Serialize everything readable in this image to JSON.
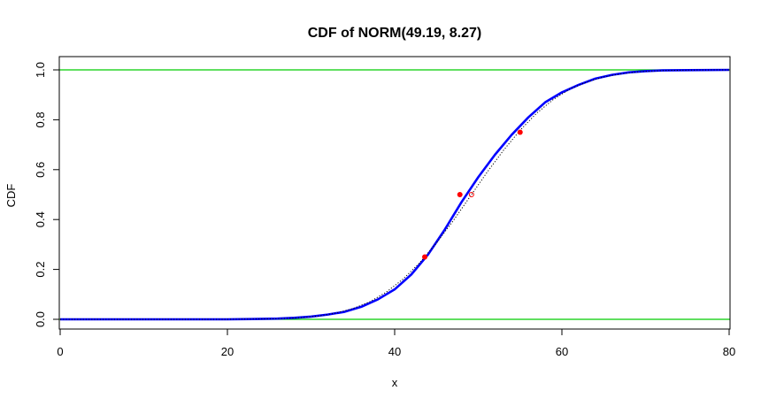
{
  "chart_data": {
    "type": "line",
    "title": "CDF of NORM(49.19, 8.27)",
    "xlabel": "x",
    "ylabel": "CDF",
    "xlim": [
      0,
      80
    ],
    "ylim": [
      0,
      1
    ],
    "x_ticks": [
      "0",
      "20",
      "40",
      "60",
      "80"
    ],
    "y_ticks": [
      "0.0",
      "0.2",
      "0.4",
      "0.6",
      "0.8",
      "1.0"
    ],
    "reference_lines": [
      {
        "y": 0,
        "color": "#00cc00"
      },
      {
        "y": 1,
        "color": "#00cc00"
      }
    ],
    "series": [
      {
        "style": "solid",
        "color": "#0000ff",
        "points": [
          [
            0,
            0.0
          ],
          [
            10,
            0.0
          ],
          [
            20,
            0.0
          ],
          [
            23,
            0.001
          ],
          [
            26,
            0.003
          ],
          [
            28,
            0.006
          ],
          [
            30,
            0.011
          ],
          [
            32,
            0.019
          ],
          [
            34,
            0.03
          ],
          [
            36,
            0.05
          ],
          [
            38,
            0.08
          ],
          [
            40,
            0.12
          ],
          [
            42,
            0.18
          ],
          [
            44,
            0.26
          ],
          [
            46,
            0.36
          ],
          [
            48,
            0.47
          ],
          [
            50,
            0.57
          ],
          [
            52,
            0.66
          ],
          [
            54,
            0.74
          ],
          [
            56,
            0.81
          ],
          [
            58,
            0.87
          ],
          [
            60,
            0.91
          ],
          [
            62,
            0.94
          ],
          [
            64,
            0.965
          ],
          [
            66,
            0.98
          ],
          [
            68,
            0.99
          ],
          [
            70,
            0.995
          ],
          [
            72,
            0.998
          ],
          [
            75,
            0.999
          ],
          [
            80,
            1.0
          ]
        ]
      },
      {
        "style": "dotted",
        "color": "#000000",
        "points": [
          [
            0,
            0.0
          ],
          [
            10,
            0.0001
          ],
          [
            20,
            0.0002
          ],
          [
            25,
            0.0017
          ],
          [
            27,
            0.0037
          ],
          [
            29,
            0.0073
          ],
          [
            31,
            0.014
          ],
          [
            33,
            0.025
          ],
          [
            35,
            0.043
          ],
          [
            37,
            0.07
          ],
          [
            39,
            0.109
          ],
          [
            41,
            0.161
          ],
          [
            43,
            0.227
          ],
          [
            45,
            0.306
          ],
          [
            47,
            0.395
          ],
          [
            49,
            0.491
          ],
          [
            51,
            0.587
          ],
          [
            53,
            0.677
          ],
          [
            55,
            0.758
          ],
          [
            57,
            0.827
          ],
          [
            59,
            0.882
          ],
          [
            61,
            0.924
          ],
          [
            63,
            0.952
          ],
          [
            65,
            0.972
          ],
          [
            67,
            0.984
          ],
          [
            69,
            0.992
          ],
          [
            71,
            0.996
          ],
          [
            73,
            0.998
          ],
          [
            77,
            0.9997
          ],
          [
            80,
            1.0
          ]
        ]
      }
    ],
    "markers": [
      {
        "x": 43.6,
        "y": 0.25,
        "color": "#ff0000",
        "shape": "filled-circle"
      },
      {
        "x": 47.8,
        "y": 0.5,
        "color": "#ff0000",
        "shape": "filled-circle"
      },
      {
        "x": 55.0,
        "y": 0.75,
        "color": "#ff0000",
        "shape": "filled-circle"
      },
      {
        "x": 49.19,
        "y": 0.5,
        "color": "#ff0000",
        "shape": "open-circle"
      }
    ],
    "grid": false,
    "legend": "none"
  }
}
